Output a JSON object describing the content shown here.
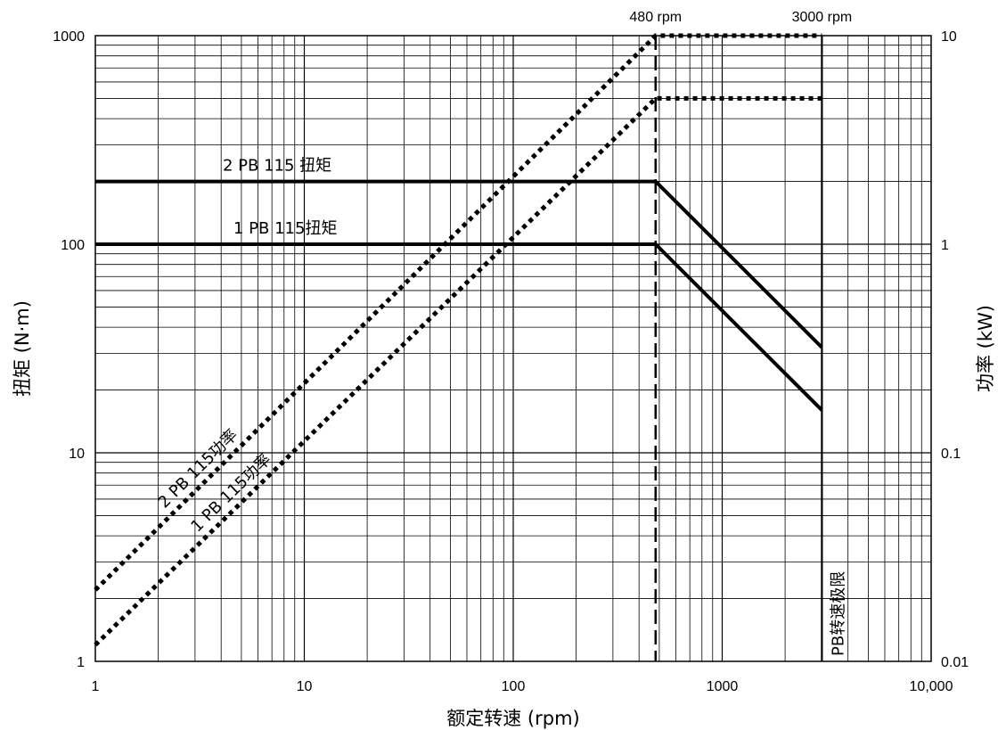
{
  "chart_data": {
    "type": "line",
    "xlabel": "额定转速 (rpm)",
    "ylabel_left": "扭矩 (N·m)",
    "ylabel_right": "功率 (kW)",
    "x_scale": "log",
    "y_scale": "log",
    "xlim": [
      1,
      10000
    ],
    "ylim_left": [
      1,
      1000
    ],
    "ylim_right": [
      0.01,
      10
    ],
    "grid": true,
    "x_ticks": [
      "1",
      "10",
      "100",
      "1000",
      "10,000"
    ],
    "y_left_ticks": [
      "1",
      "10",
      "100",
      "1000"
    ],
    "y_right_ticks": [
      "0.01",
      "0.1",
      "1",
      "10"
    ],
    "series": [
      {
        "name": "2 PB 115 扭矩",
        "axis": "left",
        "style": "solid",
        "x": [
          1,
          480,
          3000
        ],
        "y": [
          200,
          200,
          32
        ]
      },
      {
        "name": "1 PB 115扭矩",
        "axis": "left",
        "style": "solid",
        "x": [
          1,
          480,
          3000
        ],
        "y": [
          100,
          100,
          16
        ]
      },
      {
        "name": "2 PB 115功率",
        "axis": "right",
        "style": "dotted",
        "x": [
          1,
          480,
          3000
        ],
        "y": [
          0.022,
          10,
          10
        ]
      },
      {
        "name": "1 PB 115功率",
        "axis": "right",
        "style": "dotted",
        "x": [
          1,
          480,
          3000
        ],
        "y": [
          0.012,
          5,
          5
        ]
      }
    ],
    "annotations": [
      {
        "text": "480 rpm",
        "x": 480,
        "style": "dashed-vertical"
      },
      {
        "text": "3000 rpm",
        "x": 3000,
        "style": "solid-vertical"
      },
      {
        "text": "PB转速极限",
        "x": 3000
      }
    ]
  }
}
